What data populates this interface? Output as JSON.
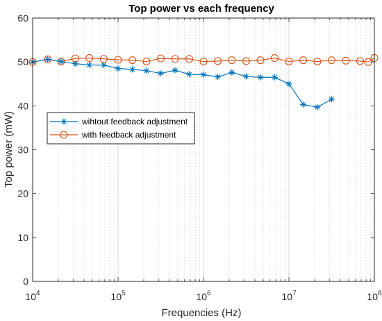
{
  "chart_data": {
    "type": "line",
    "title": "Top power vs each frequency",
    "xlabel": "Frequencies (Hz)",
    "ylabel": "Top power (mW)",
    "x_scale": "log",
    "xlim": [
      10000,
      100000000
    ],
    "ylim": [
      0,
      60
    ],
    "grid": "x-major-and-minor",
    "legend_position": "middle-left",
    "x_tick_labels": [
      {
        "base": "10",
        "exp": "4"
      },
      {
        "base": "10",
        "exp": "5"
      },
      {
        "base": "10",
        "exp": "6"
      },
      {
        "base": "10",
        "exp": "7"
      },
      {
        "base": "10",
        "exp": "8"
      }
    ],
    "y_ticks": [
      "0",
      "10",
      "20",
      "30",
      "40",
      "50",
      "60"
    ],
    "series": [
      {
        "name": "wihtout feedback adjustment",
        "color": "#0072BD",
        "marker": "asterisk",
        "x": [
          10000,
          15000,
          21500,
          31500,
          46000,
          68000,
          100000,
          147000,
          215000,
          316000,
          464000,
          681000,
          1000000,
          1470000,
          2150000,
          3160000,
          4640000,
          6810000,
          10000000,
          14700000,
          21500000,
          31600000
        ],
        "y": [
          50.0,
          50.6,
          50.1,
          49.6,
          49.3,
          49.3,
          48.5,
          48.3,
          48.0,
          47.4,
          48.1,
          47.2,
          47.1,
          46.6,
          47.6,
          46.7,
          46.5,
          46.5,
          45.0,
          40.3,
          39.7,
          41.5
        ]
      },
      {
        "name": "with feedback adjustment",
        "color": "#D95319",
        "marker": "circle",
        "x": [
          10000,
          15000,
          21500,
          31500,
          46000,
          68000,
          100000,
          147000,
          215000,
          316000,
          464000,
          681000,
          1000000,
          1470000,
          2150000,
          3160000,
          4640000,
          6810000,
          10000000,
          14700000,
          21500000,
          31600000,
          46400000,
          68100000,
          85000000,
          100000000
        ],
        "y": [
          50.0,
          50.6,
          50.1,
          50.8,
          50.9,
          50.7,
          50.5,
          50.4,
          50.1,
          50.8,
          50.7,
          50.7,
          50.1,
          50.2,
          50.4,
          50.2,
          50.4,
          50.9,
          50.1,
          50.4,
          50.1,
          50.4,
          50.3,
          50.2,
          50.0,
          50.9
        ]
      }
    ]
  }
}
